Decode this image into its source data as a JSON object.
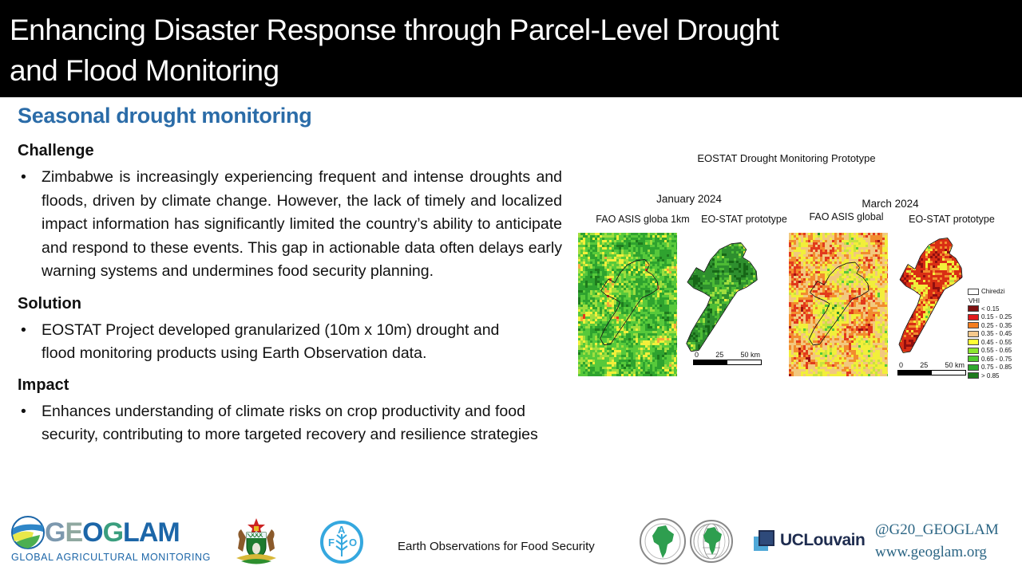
{
  "header": {
    "title_line1": "Enhancing Disaster Response through Parcel-Level Drought",
    "title_line2": "and Flood Monitoring"
  },
  "content": {
    "section_title": "Seasonal drought monitoring",
    "challenge": {
      "label": "Challenge",
      "bullet": "Zimbabwe is increasingly experiencing frequent and intense droughts and floods, driven by climate change. However, the lack of timely and localized impact information has significantly limited the country’s ability to anticipate and respond to these events. This gap in actionable data often delays early warning systems and undermines food security planning."
    },
    "solution": {
      "label": "Solution",
      "bullet": "EOSTAT Project developed granularized (10m x 10m) drought and flood monitoring products using Earth Observation data."
    },
    "impact": {
      "label": "Impact",
      "bullet": "Enhances understanding of climate risks on crop productivity and food security, contributing to more targeted recovery and resilience strategies"
    }
  },
  "figure": {
    "title": "EOSTAT Drought Monitoring Prototype",
    "months": [
      {
        "label": "January 2024",
        "maps": [
          {
            "label": "FAO ASIS globa 1km"
          },
          {
            "label": "EO-STAT prototype"
          }
        ]
      },
      {
        "label": "March 2024",
        "maps": [
          {
            "label": "FAO ASIS global"
          },
          {
            "label": "EO-STAT prototype"
          }
        ]
      }
    ],
    "scalebar": {
      "ticks": [
        "0",
        "25",
        "50 km"
      ]
    },
    "legend": {
      "district_label": "Chiredzi",
      "vhi_label": "VHI",
      "classes": [
        {
          "color": "#7E1010",
          "label": "< 0.15"
        },
        {
          "color": "#E31A1C",
          "label": "0.15 - 0.25"
        },
        {
          "color": "#F57E20",
          "label": "0.25 - 0.35"
        },
        {
          "color": "#F5C98C",
          "label": "0.35 - 0.45"
        },
        {
          "color": "#FFFF33",
          "label": "0.45 - 0.55"
        },
        {
          "color": "#8CE62E",
          "label": "0.55 - 0.65"
        },
        {
          "color": "#4FCC2E",
          "label": "0.65 - 0.75"
        },
        {
          "color": "#2EA82E",
          "label": "0.75 - 0.85"
        },
        {
          "color": "#1C7A1C",
          "label": "> 0.85"
        }
      ]
    },
    "map_palettes": {
      "jan_fao": [
        {
          "c": "#1E7A1E",
          "w": 0.2
        },
        {
          "c": "#2FA32F",
          "w": 0.22
        },
        {
          "c": "#57C93B",
          "w": 0.16
        },
        {
          "c": "#9FDE3E",
          "w": 0.1
        },
        {
          "c": "#F2EF3A",
          "w": 0.12
        },
        {
          "c": "#F2A93B",
          "w": 0.06
        },
        {
          "c": "#E23A1C",
          "w": 0.09
        },
        {
          "c": "#9E1212",
          "w": 0.05
        }
      ],
      "jan_eostat": [
        {
          "c": "#176617",
          "w": 0.28
        },
        {
          "c": "#2E8F2E",
          "w": 0.24
        },
        {
          "c": "#4DBB35",
          "w": 0.14
        },
        {
          "c": "#9FDE3E",
          "w": 0.09
        },
        {
          "c": "#F2EF3A",
          "w": 0.11
        },
        {
          "c": "#F2A93B",
          "w": 0.05
        },
        {
          "c": "#E23A1C",
          "w": 0.06
        },
        {
          "c": "#9E1212",
          "w": 0.03
        }
      ],
      "mar_fao": [
        {
          "c": "#2E8F2E",
          "w": 0.08
        },
        {
          "c": "#57C93B",
          "w": 0.1
        },
        {
          "c": "#C9E23E",
          "w": 0.08
        },
        {
          "c": "#F2EF3A",
          "w": 0.2
        },
        {
          "c": "#F2C87E",
          "w": 0.16
        },
        {
          "c": "#F28C2E",
          "w": 0.12
        },
        {
          "c": "#E23A1C",
          "w": 0.16
        },
        {
          "c": "#9E1212",
          "w": 0.1
        }
      ],
      "mar_eostat": [
        {
          "c": "#2E8F2E",
          "w": 0.07
        },
        {
          "c": "#57C93B",
          "w": 0.07
        },
        {
          "c": "#C9E23E",
          "w": 0.06
        },
        {
          "c": "#F2EF3A",
          "w": 0.16
        },
        {
          "c": "#F28C2E",
          "w": 0.09
        },
        {
          "c": "#D92E14",
          "w": 0.25
        },
        {
          "c": "#8F0F0F",
          "w": 0.3
        }
      ]
    },
    "district_shape": [
      [
        0.1,
        0.32
      ],
      [
        0.17,
        0.23
      ],
      [
        0.26,
        0.27
      ],
      [
        0.33,
        0.16
      ],
      [
        0.43,
        0.07
      ],
      [
        0.56,
        0.02
      ],
      [
        0.67,
        0.01
      ],
      [
        0.73,
        0.07
      ],
      [
        0.69,
        0.14
      ],
      [
        0.77,
        0.18
      ],
      [
        0.84,
        0.26
      ],
      [
        0.85,
        0.34
      ],
      [
        0.74,
        0.4
      ],
      [
        0.63,
        0.44
      ],
      [
        0.56,
        0.52
      ],
      [
        0.48,
        0.62
      ],
      [
        0.39,
        0.73
      ],
      [
        0.29,
        0.85
      ],
      [
        0.2,
        0.96
      ],
      [
        0.11,
        0.97
      ],
      [
        0.06,
        0.9
      ],
      [
        0.12,
        0.79
      ],
      [
        0.21,
        0.67
      ],
      [
        0.29,
        0.57
      ],
      [
        0.33,
        0.49
      ],
      [
        0.25,
        0.45
      ],
      [
        0.14,
        0.41
      ],
      [
        0.07,
        0.36
      ]
    ]
  },
  "footer": {
    "geoglam": {
      "g1": "G",
      "e": "E",
      "o": "O",
      "g2": "G",
      "lam": "LAM",
      "tagline": "GLOBAL AGRICULTURAL MONITORING"
    },
    "fao_abbr": {
      "f": "F",
      "a": "A",
      "o": "O"
    },
    "center_text": "Earth Observations for Food Security",
    "uclouvain_label": "UCLouvain",
    "social_handle": "@G20_GEOGLAM",
    "website": "www.geoglam.org"
  },
  "colors": {
    "accent_blue": "#2B6CA8",
    "header_bg": "#000000",
    "geoglam_blue": "#1C66A8",
    "fao_blue": "#35A8DF",
    "social_teal": "#2B6584"
  }
}
